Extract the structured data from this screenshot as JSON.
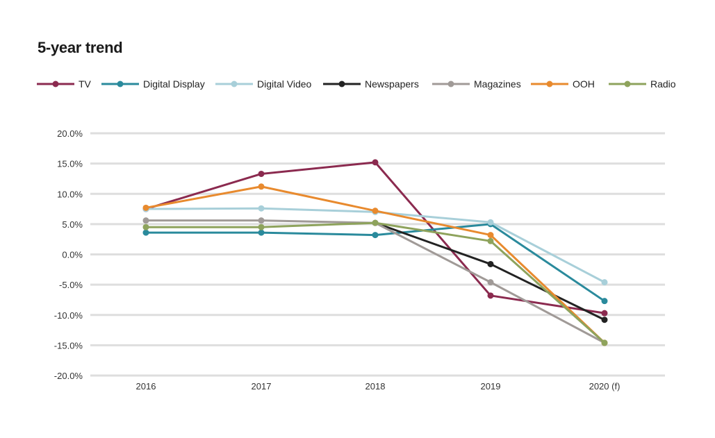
{
  "title": "5-year trend",
  "chart_data": {
    "type": "line",
    "title": "5-year trend",
    "xlabel": "",
    "ylabel": "",
    "categories": [
      "2016",
      "2017",
      "2018",
      "2019",
      "2020 (f)"
    ],
    "ylim": [
      -20,
      20
    ],
    "yticks": [
      20,
      15,
      10,
      5,
      0,
      -5,
      -10,
      -15,
      -20
    ],
    "ytick_labels": [
      "20.0%",
      "15.0%",
      "10.0%",
      "5.0%",
      "0.0%",
      "-5.0%",
      "-10.0%",
      "-15.0%",
      "-20.0%"
    ],
    "grid": "horizontal",
    "legend_position": "top",
    "series": [
      {
        "name": "TV",
        "color": "#8b2a4f",
        "values": [
          7.5,
          13.3,
          15.2,
          -6.8,
          -9.7
        ]
      },
      {
        "name": "Digital Display",
        "color": "#2a8a9c",
        "values": [
          3.6,
          3.6,
          3.2,
          5.0,
          -7.7
        ]
      },
      {
        "name": "Digital Video",
        "color": "#a8cfd9",
        "values": [
          7.5,
          7.6,
          7.0,
          5.3,
          -4.6
        ]
      },
      {
        "name": "Newspapers",
        "color": "#222222",
        "values": [
          null,
          null,
          5.2,
          -1.6,
          -10.8
        ]
      },
      {
        "name": "Magazines",
        "color": "#a09a97",
        "values": [
          5.6,
          5.6,
          5.2,
          -4.6,
          -14.6
        ]
      },
      {
        "name": "OOH",
        "color": "#e88a2e",
        "values": [
          7.7,
          11.2,
          7.2,
          3.2,
          -14.6
        ]
      },
      {
        "name": "Radio",
        "color": "#8ea35c",
        "values": [
          4.5,
          4.5,
          5.2,
          2.2,
          -14.6
        ]
      }
    ]
  }
}
